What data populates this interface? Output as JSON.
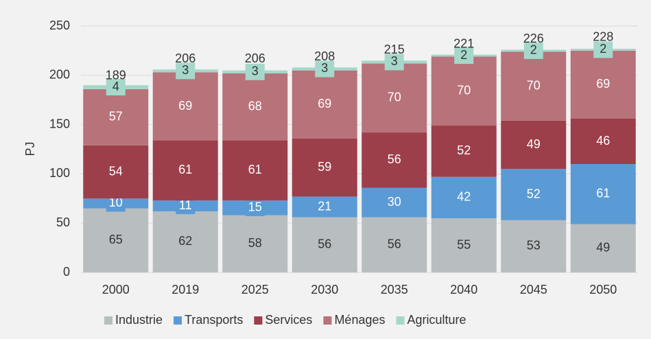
{
  "chart_data": {
    "type": "stacked_bar",
    "categories": [
      "2000",
      "2019",
      "2025",
      "2030",
      "2035",
      "2040",
      "2045",
      "2050"
    ],
    "series": [
      {
        "name": "Industrie",
        "color": "#b8bdc0",
        "label_color": "#333333",
        "values": [
          65,
          62,
          58,
          56,
          56,
          55,
          53,
          49
        ]
      },
      {
        "name": "Transports",
        "color": "#5b9bd5",
        "label_color": "#ffffff",
        "values": [
          10,
          11,
          15,
          21,
          30,
          42,
          52,
          61
        ]
      },
      {
        "name": "Services",
        "color": "#9c3f4a",
        "label_color": "#ffffff",
        "values": [
          54,
          61,
          61,
          59,
          56,
          52,
          49,
          46
        ]
      },
      {
        "name": "Ménages",
        "color": "#b8727a",
        "label_color": "#ffffff",
        "values": [
          57,
          69,
          68,
          69,
          70,
          70,
          70,
          69
        ]
      },
      {
        "name": "Agriculture",
        "color": "#a6d7cb",
        "label_color": "#333333",
        "values": [
          4,
          3,
          3,
          3,
          3,
          2,
          2,
          2
        ]
      }
    ],
    "totals": [
      189,
      206,
      206,
      208,
      215,
      221,
      226,
      228
    ],
    "y_label": "PJ",
    "ylim": [
      0,
      250
    ],
    "yticks": [
      0,
      50,
      100,
      150,
      200,
      250
    ],
    "grid": true,
    "legend": "bottom"
  }
}
